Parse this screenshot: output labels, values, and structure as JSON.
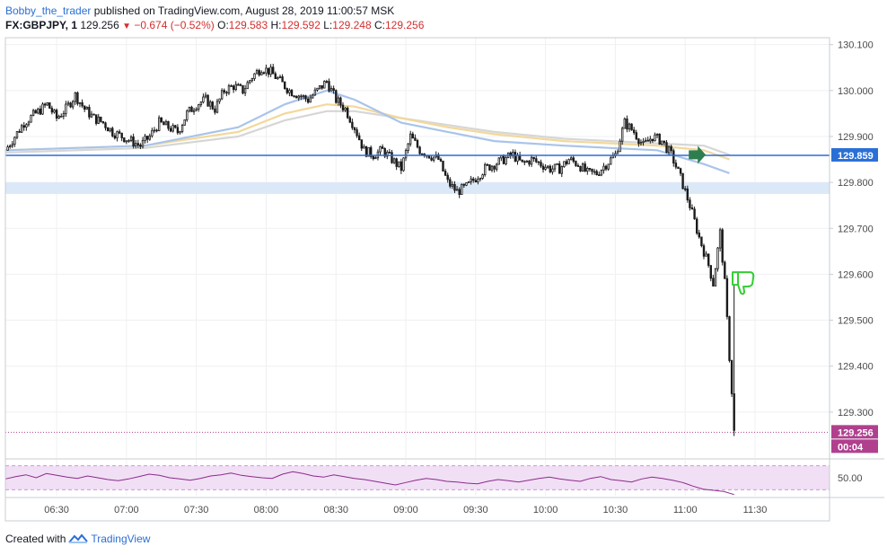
{
  "header": {
    "author": "Bobby_the_trader",
    "published_text": "published on TradingView.com, August 28, 2019 11:00:57 MSK",
    "symbol": "FX:GBPJPY, 1",
    "last": "129.256",
    "change": "−0.674 (−0.52%)",
    "o_label": "O:",
    "o_val": "129.583",
    "h_label": "H:",
    "h_val": "129.592",
    "l_label": "L:",
    "l_val": "129.248",
    "c_label": "C:",
    "c_val": "129.256"
  },
  "footer": {
    "created_with": "Created with",
    "brand": "TradingView"
  },
  "colors": {
    "candle_up": "#ffffff",
    "candle_down": "#1a1a1a",
    "wick": "#1a1a1a",
    "ma_blue": "#a9c4ea",
    "ma_orange": "#f2d89a",
    "ma_gray": "#d6d6d6",
    "hline": "#2a6fd6",
    "zone": "#dbe8f8",
    "rsi": "#8b2b8b",
    "rsi_band": "#f1dff5",
    "price_dotted": "#b0408e"
  },
  "chart_data": {
    "type": "candlestick",
    "symbol": "FX:GBPJPY",
    "interval": "1",
    "x_axis": {
      "start_time": "06:08",
      "ticks": [
        "06:30",
        "07:00",
        "07:30",
        "08:00",
        "08:30",
        "09:00",
        "09:30",
        "10:00",
        "10:30",
        "11:00",
        "11:30"
      ],
      "xlim": [
        "06:08",
        "12:02"
      ]
    },
    "y_axis": {
      "ticks": [
        "130.100",
        "130.000",
        "129.900",
        "129.800",
        "129.700",
        "129.600",
        "129.500",
        "129.400",
        "129.300"
      ],
      "ylim": [
        129.2,
        130.115
      ]
    },
    "close_path": [
      [
        0,
        129.87
      ],
      [
        4,
        129.9
      ],
      [
        8,
        129.93
      ],
      [
        13,
        129.95
      ],
      [
        18,
        129.97
      ],
      [
        22,
        129.94
      ],
      [
        26,
        129.96
      ],
      [
        30,
        129.99
      ],
      [
        34,
        129.96
      ],
      [
        38,
        129.94
      ],
      [
        42,
        129.93
      ],
      [
        46,
        129.91
      ],
      [
        50,
        129.9
      ],
      [
        54,
        129.89
      ],
      [
        58,
        129.88
      ],
      [
        62,
        129.9
      ],
      [
        66,
        129.93
      ],
      [
        70,
        129.92
      ],
      [
        74,
        129.91
      ],
      [
        78,
        129.95
      ],
      [
        82,
        129.97
      ],
      [
        86,
        129.98
      ],
      [
        90,
        129.96
      ],
      [
        94,
        130.0
      ],
      [
        98,
        130.01
      ],
      [
        102,
        130.0
      ],
      [
        106,
        130.03
      ],
      [
        110,
        130.05
      ],
      [
        114,
        130.04
      ],
      [
        118,
        130.02
      ],
      [
        122,
        130.0
      ],
      [
        126,
        129.99
      ],
      [
        130,
        129.98
      ],
      [
        134,
        130.0
      ],
      [
        138,
        130.02
      ],
      [
        142,
        129.98
      ],
      [
        146,
        129.96
      ],
      [
        150,
        129.92
      ],
      [
        154,
        129.87
      ],
      [
        158,
        129.86
      ],
      [
        162,
        129.87
      ],
      [
        166,
        129.85
      ],
      [
        170,
        129.83
      ],
      [
        174,
        129.9
      ],
      [
        178,
        129.87
      ],
      [
        182,
        129.86
      ],
      [
        186,
        129.85
      ],
      [
        190,
        129.8
      ],
      [
        194,
        129.78
      ],
      [
        198,
        129.79
      ],
      [
        202,
        129.81
      ],
      [
        206,
        129.83
      ],
      [
        210,
        129.84
      ],
      [
        214,
        129.85
      ],
      [
        218,
        129.86
      ],
      [
        222,
        129.84
      ],
      [
        226,
        129.85
      ],
      [
        230,
        129.84
      ],
      [
        234,
        129.83
      ],
      [
        238,
        129.83
      ],
      [
        242,
        129.85
      ],
      [
        246,
        129.84
      ],
      [
        250,
        129.82
      ],
      [
        254,
        129.82
      ],
      [
        258,
        129.84
      ],
      [
        262,
        129.86
      ],
      [
        266,
        129.93
      ],
      [
        270,
        129.91
      ],
      [
        274,
        129.88
      ],
      [
        278,
        129.9
      ],
      [
        282,
        129.89
      ],
      [
        286,
        129.86
      ],
      [
        290,
        129.81
      ],
      [
        294,
        129.75
      ],
      [
        298,
        129.68
      ],
      [
        302,
        129.62
      ],
      [
        304,
        129.58
      ],
      [
        307,
        129.69
      ],
      [
        309,
        129.58
      ],
      [
        313,
        129.26
      ]
    ],
    "horizontal_line": {
      "price": 129.859,
      "label": "129.859"
    },
    "support_zone": [
      129.775,
      129.8
    ],
    "current_price": {
      "price": 129.256,
      "label": "129.256",
      "countdown": "00:04"
    },
    "moving_averages": [
      {
        "color": "blue",
        "points": [
          [
            0,
            129.87
          ],
          [
            60,
            129.88
          ],
          [
            100,
            129.92
          ],
          [
            120,
            129.97
          ],
          [
            138,
            130.0
          ],
          [
            150,
            129.98
          ],
          [
            170,
            129.93
          ],
          [
            190,
            129.91
          ],
          [
            210,
            129.89
          ],
          [
            240,
            129.88
          ],
          [
            260,
            129.875
          ],
          [
            280,
            129.87
          ],
          [
            300,
            129.84
          ],
          [
            311,
            129.82
          ]
        ]
      },
      {
        "color": "orange",
        "points": [
          [
            0,
            129.87
          ],
          [
            60,
            129.88
          ],
          [
            100,
            129.91
          ],
          [
            120,
            129.95
          ],
          [
            138,
            129.97
          ],
          [
            150,
            129.965
          ],
          [
            170,
            129.94
          ],
          [
            190,
            129.92
          ],
          [
            210,
            129.905
          ],
          [
            240,
            129.89
          ],
          [
            260,
            129.885
          ],
          [
            280,
            129.88
          ],
          [
            300,
            129.87
          ],
          [
            311,
            129.85
          ]
        ]
      },
      {
        "color": "gray",
        "points": [
          [
            0,
            129.865
          ],
          [
            60,
            129.875
          ],
          [
            100,
            129.9
          ],
          [
            120,
            129.935
          ],
          [
            138,
            129.955
          ],
          [
            150,
            129.955
          ],
          [
            170,
            129.94
          ],
          [
            190,
            129.925
          ],
          [
            210,
            129.91
          ],
          [
            240,
            129.895
          ],
          [
            260,
            129.89
          ],
          [
            280,
            129.885
          ],
          [
            300,
            129.88
          ],
          [
            311,
            129.86
          ]
        ]
      }
    ],
    "rsi": {
      "level_label": "50.00",
      "ylim": [
        20,
        80
      ],
      "values": [
        48,
        52,
        55,
        50,
        57,
        54,
        51,
        49,
        53,
        50,
        47,
        45,
        48,
        52,
        56,
        54,
        50,
        48,
        46,
        49,
        53,
        55,
        58,
        54,
        52,
        50,
        49,
        56,
        60,
        57,
        53,
        51,
        55,
        52,
        49,
        47,
        44,
        41,
        38,
        42,
        46,
        49,
        47,
        44,
        43,
        41,
        40,
        44,
        47,
        45,
        43,
        46,
        49,
        51,
        48,
        46,
        44,
        49,
        52,
        47,
        45,
        43,
        48,
        51,
        49,
        46,
        42,
        36,
        31,
        29,
        27,
        22
      ]
    },
    "markers": [
      {
        "type": "arrow-right",
        "color": "#2e7d4f",
        "t": 297,
        "price": 129.86
      },
      {
        "type": "thumbs-down",
        "color": "#33cc33",
        "t": 317,
        "price": 129.585
      }
    ]
  }
}
